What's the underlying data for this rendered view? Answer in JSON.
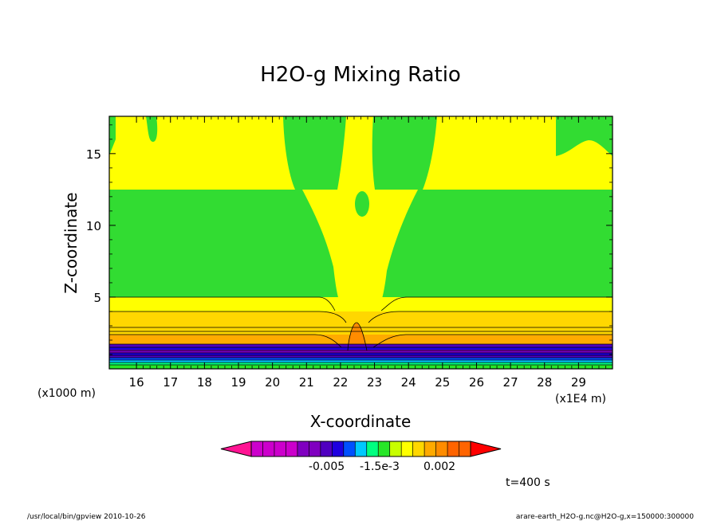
{
  "chart_data": {
    "type": "heatmap",
    "title": "H2O-g Mixing Ratio",
    "xlabel": "X-coordinate",
    "ylabel": "Z-coordinate",
    "x_unit": "(x1E4 m)",
    "y_unit": "(x1000 m)",
    "xlim": [
      15.2,
      30.0
    ],
    "ylim": [
      0,
      17.6
    ],
    "x_ticks": [
      "16",
      "17",
      "18",
      "19",
      "20",
      "21",
      "22",
      "23",
      "24",
      "25",
      "26",
      "27",
      "28",
      "29"
    ],
    "y_ticks": [
      "5",
      "10",
      "15"
    ],
    "colorbar": {
      "labels": [
        "-0.005",
        "-1.5e-3",
        "0.002"
      ],
      "colors": [
        "#ff1493",
        "#cc00cc",
        "#cc00cc",
        "#cc00cc",
        "#cc00cc",
        "#8000c0",
        "#8000c0",
        "#5000c0",
        "#1e00e0",
        "#0050ff",
        "#00c8ff",
        "#00ff80",
        "#28e628",
        "#c8ff00",
        "#ffff00",
        "#ffd700",
        "#ffaa00",
        "#ff8c00",
        "#ff6400",
        "#ff6400",
        "#ff0000"
      ]
    },
    "time_label": "t=400 s"
  },
  "footer": {
    "left": "/usr/local/bin/gpview  2010-10-26",
    "right": "arare-earth_H2O-g.nc@H2O-g,x=150000:300000"
  }
}
